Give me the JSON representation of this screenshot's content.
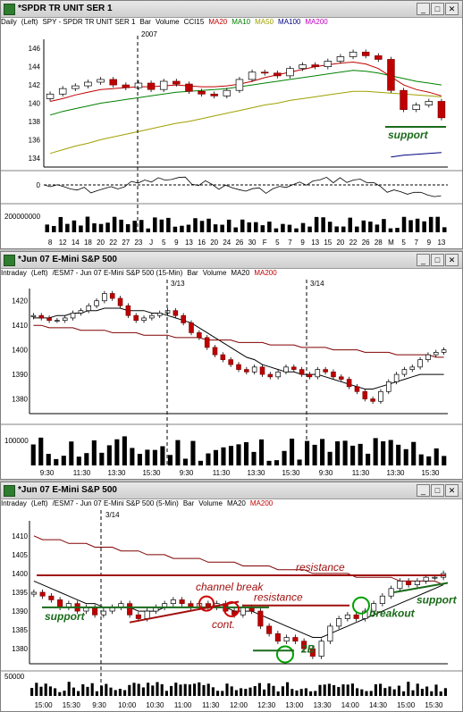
{
  "win1": {
    "title": "*SPDR TR UNIT SER 1",
    "header": [
      "Daily",
      "(Left)",
      "SPY - SPDR TR UNIT SER 1",
      "Bar",
      "Volume",
      "CCI15",
      "MA20",
      "MA10",
      "MA50",
      "MA100",
      "MA200"
    ],
    "header_colors": [
      "#000",
      "#000",
      "#000",
      "#000",
      "#000",
      "#000",
      "#c00000",
      "#008000",
      "#a0a000",
      "#000080",
      "#c000c0"
    ],
    "year_label": "2007",
    "y_ticks": [
      "146",
      "144",
      "142",
      "140",
      "138",
      "136",
      "134"
    ],
    "cci_tick": "0",
    "vol_tick": "200000000",
    "x_ticks": [
      "8",
      "12",
      "14",
      "18",
      "20",
      "22",
      "27",
      "23",
      "J",
      "5",
      "9",
      "13",
      "16",
      "20",
      "24",
      "26",
      "30",
      "F",
      "5",
      "7",
      "9",
      "13",
      "15",
      "20",
      "22",
      "26",
      "28",
      "M",
      "5",
      "7",
      "9",
      "13"
    ],
    "annotation": "support"
  },
  "win2": {
    "title": "*Jun 07  E-Mini S&P 500",
    "header": [
      "Intraday",
      "(Left)",
      "/ESM7 - Jun 07 E-Mini S&P 500 (15-Min)",
      "Bar",
      "Volume",
      "MA20",
      "MA200"
    ],
    "header_colors": [
      "#000",
      "#000",
      "#000",
      "#000",
      "#000",
      "#000",
      "#c00000"
    ],
    "date_labels": [
      "3/13",
      "3/14"
    ],
    "y_ticks": [
      "1420",
      "1410",
      "1400",
      "1390",
      "1380"
    ],
    "vol_tick": "100000",
    "x_ticks": [
      "9:30",
      "11:30",
      "13:30",
      "15:30",
      "9:30",
      "11:30",
      "13:30",
      "15:30",
      "9:30",
      "11:30",
      "13:30",
      "15:30"
    ]
  },
  "win3": {
    "title": "*Jun 07  E-Mini S&P 500",
    "header": [
      "Intraday",
      "(Left)",
      "/ESM7 - Jun 07 E-Mini S&P 500 (5-Min)",
      "Bar",
      "Volume",
      "MA20",
      "MA200"
    ],
    "header_colors": [
      "#000",
      "#000",
      "#000",
      "#000",
      "#000",
      "#000",
      "#c00000"
    ],
    "date_label": "3/14",
    "y_ticks": [
      "1410",
      "1405",
      "1400",
      "1395",
      "1390",
      "1385",
      "1380"
    ],
    "vol_tick": "50000",
    "x_ticks": [
      "15:00",
      "15:30",
      "9:30",
      "10:00",
      "10:30",
      "11:00",
      "11:30",
      "12:00",
      "12:30",
      "13:00",
      "13:30",
      "14:00",
      "14:30",
      "15:00",
      "15:30"
    ],
    "annotations": {
      "resistance_top": "resistance",
      "channel_break": "channel break",
      "resistance_mid": "resistance",
      "support_left": "support",
      "cont": "cont.",
      "breakout": "breakout",
      "support_right": "support",
      "two_b": "2B"
    }
  },
  "chart_data": [
    {
      "type": "bar",
      "title": "SPY - SPDR TR UNIT SER 1 (Daily)",
      "ylim": [
        133,
        147
      ],
      "series": [
        {
          "name": "SPY",
          "values": [
            141.0,
            141.6,
            141.9,
            142.3,
            142.6,
            142.0,
            141.7,
            142.2,
            141.5,
            142.4,
            142.1,
            141.3,
            141.0,
            140.8,
            141.4,
            142.6,
            143.4,
            143.3,
            143.0,
            143.8,
            144.2,
            144.0,
            144.6,
            145.1,
            145.6,
            145.2,
            144.8,
            141.4,
            139.3,
            139.8,
            140.2,
            138.4
          ]
        },
        {
          "name": "MA20",
          "values": [
            140.2,
            140.5,
            140.9,
            141.2,
            141.5,
            141.6,
            141.7,
            141.8,
            141.8,
            141.9,
            142.0,
            141.9,
            141.8,
            141.8,
            141.9,
            142.1,
            142.4,
            142.8,
            143.1,
            143.4,
            143.7,
            144.0,
            144.2,
            144.4,
            144.5,
            144.3,
            143.8,
            142.9,
            142.0,
            141.5,
            141.2,
            140.8
          ]
        },
        {
          "name": "MA50",
          "values": [
            138.7,
            139.1,
            139.4,
            139.7,
            140.0,
            140.2,
            140.4,
            140.6,
            140.8,
            141.0,
            141.2,
            141.3,
            141.4,
            141.5,
            141.6,
            141.8,
            142.0,
            142.2,
            142.4,
            142.6,
            142.8,
            143.0,
            143.2,
            143.4,
            143.6,
            143.5,
            143.3,
            143.0,
            142.7,
            142.4,
            142.2,
            142.0
          ]
        },
        {
          "name": "MA100",
          "values": [
            134.5,
            134.9,
            135.3,
            135.6,
            136.0,
            136.3,
            136.6,
            136.9,
            137.2,
            137.5,
            137.8,
            138.0,
            138.3,
            138.6,
            138.9,
            139.2,
            139.5,
            139.8,
            140.0,
            140.3,
            140.5,
            140.7,
            140.9,
            141.1,
            141.3,
            141.3,
            141.2,
            141.1,
            141.0,
            140.9,
            140.8,
            140.7
          ]
        },
        {
          "name": "MA200",
          "values": [
            null,
            null,
            null,
            null,
            null,
            null,
            null,
            null,
            null,
            null,
            null,
            null,
            null,
            null,
            null,
            null,
            null,
            null,
            null,
            null,
            null,
            null,
            null,
            null,
            null,
            null,
            null,
            134.1,
            134.3,
            134.4,
            134.5,
            134.6
          ]
        }
      ]
    },
    {
      "type": "bar",
      "title": "/ESM7 - Jun 07 E-Mini S&P 500 (15-Min)",
      "ylim": [
        1374,
        1425
      ],
      "series": [
        {
          "name": "ESM7",
          "values": [
            1414,
            1413,
            1412,
            1412,
            1413,
            1415,
            1416,
            1418,
            1420,
            1423,
            1421,
            1418,
            1414,
            1412,
            1413,
            1414,
            1415,
            1416,
            1414,
            1411,
            1407,
            1405,
            1401,
            1398,
            1396,
            1394,
            1392,
            1391,
            1393,
            1390,
            1389,
            1391,
            1393,
            1392,
            1390,
            1389,
            1392,
            1391,
            1389,
            1388,
            1385,
            1383,
            1380,
            1379,
            1383,
            1387,
            1390,
            1392,
            1393,
            1396,
            1398,
            1399,
            1400
          ]
        },
        {
          "name": "MA20",
          "values": [
            1413,
            1413,
            1413,
            1414,
            1414,
            1415,
            1415,
            1416,
            1416,
            1417,
            1417,
            1417,
            1416,
            1416,
            1416,
            1415,
            1415,
            1414,
            1413,
            1412,
            1411,
            1409,
            1407,
            1405,
            1403,
            1401,
            1399,
            1397,
            1396,
            1394,
            1393,
            1392,
            1391,
            1391,
            1390,
            1390,
            1390,
            1389,
            1388,
            1387,
            1386,
            1385,
            1384,
            1384,
            1385,
            1386,
            1387,
            1388,
            1389,
            1390,
            1390,
            1390,
            1390
          ]
        },
        {
          "name": "MA200",
          "values": [
            1410,
            1410,
            1409,
            1409,
            1409,
            1409,
            1408,
            1408,
            1408,
            1408,
            1407,
            1407,
            1407,
            1407,
            1406,
            1406,
            1406,
            1406,
            1405,
            1405,
            1405,
            1405,
            1404,
            1404,
            1404,
            1404,
            1403,
            1403,
            1403,
            1403,
            1402,
            1402,
            1402,
            1402,
            1401,
            1401,
            1401,
            1401,
            1400,
            1400,
            1400,
            1400,
            1399,
            1399,
            1399,
            1399,
            1398,
            1398,
            1398,
            1398,
            1398,
            1397,
            1397
          ]
        }
      ]
    },
    {
      "type": "bar",
      "title": "/ESM7 - Jun 07 E-Mini S&P 500 (5-Min)",
      "ylim": [
        1376,
        1414
      ],
      "series": [
        {
          "name": "ESM7",
          "values": [
            1395,
            1394,
            1393,
            1391,
            1392,
            1390,
            1391,
            1389,
            1390,
            1391,
            1392,
            1389,
            1388,
            1390,
            1391,
            1392,
            1393,
            1392,
            1391,
            1392,
            1391,
            1392,
            1390,
            1389,
            1391,
            1390,
            1386,
            1384,
            1382,
            1383,
            1382,
            1380,
            1378,
            1382,
            1386,
            1388,
            1389,
            1388,
            1390,
            1392,
            1394,
            1396,
            1398,
            1397,
            1398,
            1399,
            1399,
            1400
          ]
        },
        {
          "name": "MA20",
          "values": [
            1398,
            1397,
            1396,
            1395,
            1394,
            1393,
            1392,
            1392,
            1391,
            1391,
            1391,
            1391,
            1390,
            1390,
            1390,
            1391,
            1391,
            1391,
            1391,
            1391,
            1391,
            1391,
            1391,
            1390,
            1390,
            1390,
            1389,
            1388,
            1387,
            1386,
            1385,
            1384,
            1383,
            1383,
            1384,
            1385,
            1386,
            1387,
            1388,
            1389,
            1390,
            1391,
            1392,
            1393,
            1394,
            1395,
            1396,
            1397
          ]
        },
        {
          "name": "MA200",
          "values": [
            1410,
            1409,
            1409,
            1409,
            1408,
            1408,
            1408,
            1407,
            1407,
            1407,
            1406,
            1406,
            1406,
            1405,
            1405,
            1405,
            1404,
            1404,
            1404,
            1404,
            1403,
            1403,
            1403,
            1403,
            1402,
            1402,
            1402,
            1402,
            1401,
            1401,
            1401,
            1401,
            1400,
            1400,
            1400,
            1400,
            1400,
            1399,
            1399,
            1399,
            1399,
            1399,
            1398,
            1398,
            1398,
            1398,
            1398,
            1397
          ]
        }
      ]
    }
  ]
}
